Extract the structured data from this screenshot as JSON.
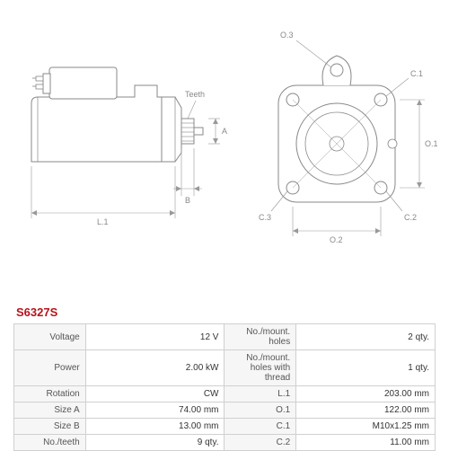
{
  "part_number": "S6327S",
  "diagram": {
    "stroke_color": "#888888",
    "stroke_width": 1,
    "dim_stroke_color": "#999999",
    "dim_stroke_width": 0.7,
    "dim_text_color": "#888888",
    "dim_font_size": 9,
    "fill": "#ffffff",
    "labels": {
      "L1": "L.1",
      "A": "A",
      "B": "B",
      "Teeth": "Teeth",
      "O1": "O.1",
      "O2": "O.2",
      "O3": "O.3",
      "C1": "C.1",
      "C2": "C.2",
      "C3": "C.3"
    }
  },
  "specs": [
    {
      "l1": "Voltage",
      "v1": "12 V",
      "l2": "No./mount. holes",
      "v2": "2 qty."
    },
    {
      "l1": "Power",
      "v1": "2.00 kW",
      "l2": "No./mount. holes with thread",
      "v2": "1 qty."
    },
    {
      "l1": "Rotation",
      "v1": "CW",
      "l2": "L.1",
      "v2": "203.00 mm"
    },
    {
      "l1": "Size A",
      "v1": "74.00 mm",
      "l2": "O.1",
      "v2": "122.00 mm"
    },
    {
      "l1": "Size B",
      "v1": "13.00 mm",
      "l2": "C.1",
      "v2": "M10x1.25 mm"
    },
    {
      "l1": "No./teeth",
      "v1": "9 qty.",
      "l2": "C.2",
      "v2": "11.00 mm"
    }
  ],
  "colors": {
    "part_number": "#b8121b",
    "table_border": "#d0d0d0",
    "table_label_bg": "#f6f6f6",
    "table_label_text": "#555555",
    "table_value_text": "#333333"
  }
}
